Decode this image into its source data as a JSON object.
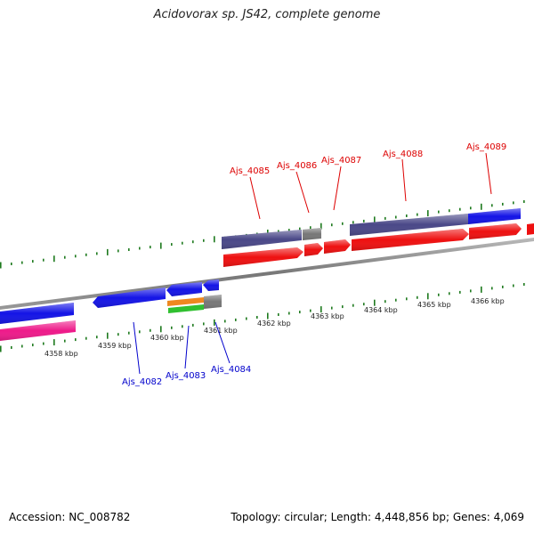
{
  "title": "Acidovorax sp. JS42, complete genome",
  "footer": {
    "accession": "Accession: NC_008782",
    "summary": "Topology: circular; Length: 4,448,856 bp; Genes: 4,069"
  },
  "colors": {
    "cds_dark": "#4a4888",
    "cds_blue": "#1414e6",
    "cds_red": "#ee1010",
    "cds_pink": "#ee1a8a",
    "cds_gray": "#777777",
    "cds_orange": "#ee8820",
    "cds_green": "#30c030",
    "ticks": "#1e7a1e",
    "backbone": "#888888",
    "label_forward": "#dd0000",
    "label_reverse": "#0000cc"
  },
  "scale": {
    "unit": "kbp",
    "labels": [
      "4358 kbp",
      "4359 kbp",
      "4360 kbp",
      "4361 kbp",
      "4362 kbp",
      "4363 kbp",
      "4364 kbp",
      "4365 kbp",
      "4366 kbp"
    ]
  },
  "genes": {
    "forward_labels": [
      "Ajs_4085",
      "Ajs_4086",
      "Ajs_4087",
      "Ajs_4088",
      "Ajs_4089"
    ],
    "reverse_labels": [
      "Ajs_4082",
      "Ajs_4083",
      "Ajs_4084"
    ]
  }
}
